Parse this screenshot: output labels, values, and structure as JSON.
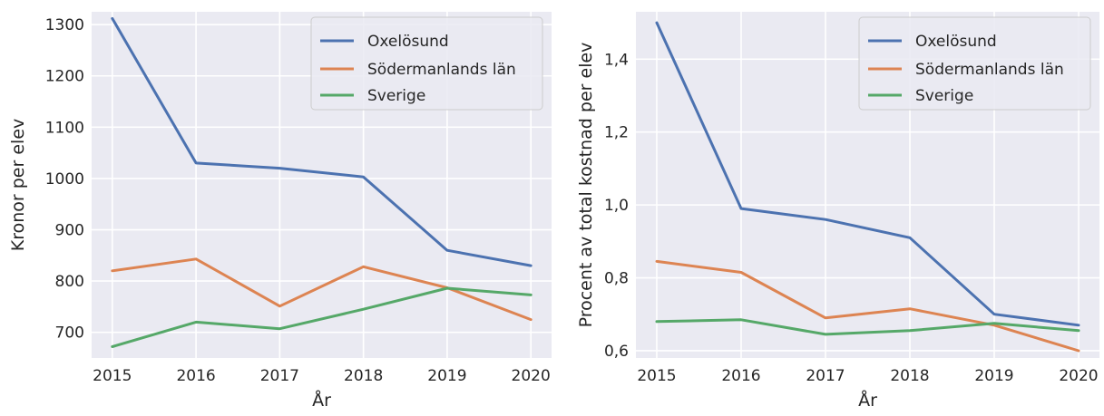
{
  "chart_data": [
    {
      "type": "line",
      "x": [
        2015,
        2016,
        2017,
        2018,
        2019,
        2020
      ],
      "xlabel": "År",
      "ylabel": "Kronor per elev",
      "ylim": [
        650,
        1325
      ],
      "yticks": [
        700,
        800,
        900,
        1000,
        1100,
        1200,
        1300
      ],
      "ytick_labels": [
        "700",
        "800",
        "900",
        "1000",
        "1100",
        "1200",
        "1300"
      ],
      "grid": true,
      "legend": "top-right",
      "series": [
        {
          "name": "Oxelösund",
          "color": "#4c72b0",
          "values": [
            1312,
            1030,
            1020,
            1003,
            860,
            830
          ]
        },
        {
          "name": "Södermanlands län",
          "color": "#dd8452",
          "values": [
            820,
            843,
            751,
            828,
            787,
            725
          ]
        },
        {
          "name": "Sverige",
          "color": "#55a868",
          "values": [
            672,
            720,
            707,
            745,
            786,
            773
          ]
        }
      ]
    },
    {
      "type": "line",
      "x": [
        2015,
        2016,
        2017,
        2018,
        2019,
        2020
      ],
      "xlabel": "År",
      "ylabel": "Procent av total kostnad per elev",
      "ylim": [
        0.58,
        1.53
      ],
      "yticks": [
        0.6,
        0.8,
        1.0,
        1.2,
        1.4
      ],
      "ytick_labels": [
        "0,6",
        "0,8",
        "1,0",
        "1,2",
        "1,4"
      ],
      "grid": true,
      "legend": "top-right",
      "series": [
        {
          "name": "Oxelösund",
          "color": "#4c72b0",
          "values": [
            1.5,
            0.99,
            0.96,
            0.91,
            0.7,
            0.67
          ]
        },
        {
          "name": "Södermanlands län",
          "color": "#dd8452",
          "values": [
            0.845,
            0.815,
            0.69,
            0.715,
            0.67,
            0.6
          ]
        },
        {
          "name": "Sverige",
          "color": "#55a868",
          "values": [
            0.68,
            0.685,
            0.645,
            0.655,
            0.675,
            0.655
          ]
        }
      ]
    }
  ]
}
